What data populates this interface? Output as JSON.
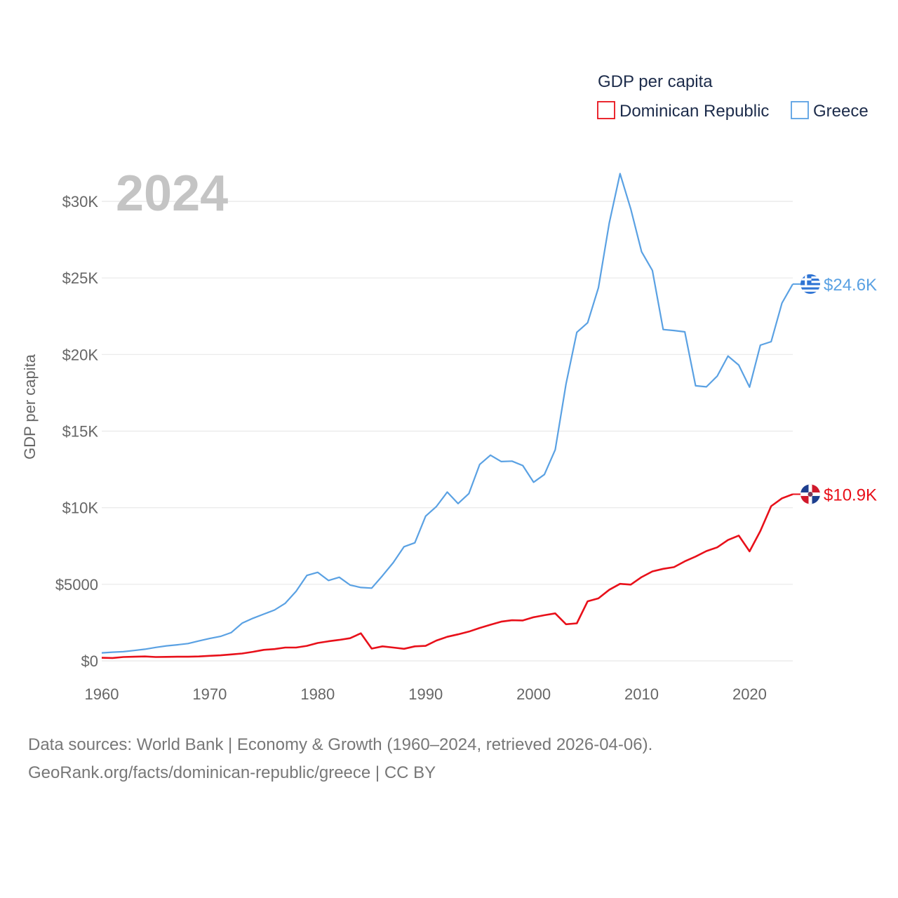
{
  "chart_data": {
    "type": "line",
    "title": "GDP per capita",
    "ylabel": "GDP per capita",
    "xlabel": "",
    "highlight_year": "2024",
    "xlim": [
      1960,
      2024
    ],
    "ylim": [
      0,
      32500
    ],
    "x_ticks": [
      1960,
      1970,
      1980,
      1990,
      2000,
      2010,
      2020
    ],
    "y_ticks": [
      {
        "value": 0,
        "label": "$0"
      },
      {
        "value": 5000,
        "label": "$5000"
      },
      {
        "value": 10000,
        "label": "$10K"
      },
      {
        "value": 15000,
        "label": "$15K"
      },
      {
        "value": 20000,
        "label": "$20K"
      },
      {
        "value": 25000,
        "label": "$25K"
      },
      {
        "value": 30000,
        "label": "$30K"
      }
    ],
    "legend": {
      "title": "GDP per capita",
      "placement": "top-right"
    },
    "x": [
      1960,
      1961,
      1962,
      1963,
      1964,
      1965,
      1966,
      1967,
      1968,
      1969,
      1970,
      1971,
      1972,
      1973,
      1974,
      1975,
      1976,
      1977,
      1978,
      1979,
      1980,
      1981,
      1982,
      1983,
      1984,
      1985,
      1986,
      1987,
      1988,
      1989,
      1990,
      1991,
      1992,
      1993,
      1994,
      1995,
      1996,
      1997,
      1998,
      1999,
      2000,
      2001,
      2002,
      2003,
      2004,
      2005,
      2006,
      2007,
      2008,
      2009,
      2010,
      2011,
      2012,
      2013,
      2014,
      2015,
      2016,
      2017,
      2018,
      2019,
      2020,
      2021,
      2022,
      2023,
      2024
    ],
    "series": [
      {
        "name": "Dominican Republic",
        "color": "#e8101a",
        "end_label": "$10.9K",
        "flag": "dominican-republic",
        "values": [
          200,
          190,
          250,
          270,
          290,
          250,
          260,
          270,
          270,
          290,
          330,
          360,
          420,
          480,
          590,
          720,
          770,
          870,
          870,
          980,
          1170,
          1280,
          1370,
          1480,
          1800,
          800,
          950,
          870,
          790,
          950,
          980,
          1330,
          1570,
          1730,
          1910,
          2150,
          2360,
          2560,
          2650,
          2640,
          2850,
          2980,
          3100,
          2390,
          2450,
          3890,
          4080,
          4640,
          5030,
          4980,
          5470,
          5840,
          6010,
          6120,
          6500,
          6810,
          7170,
          7410,
          7890,
          8180,
          7150,
          8480,
          10100,
          10610,
          10880
        ]
      },
      {
        "name": "Greece",
        "color": "#5aa1e3",
        "end_label": "$24.6K",
        "flag": "greece",
        "values": [
          520,
          570,
          600,
          680,
          760,
          880,
          980,
          1050,
          1130,
          1300,
          1460,
          1600,
          1850,
          2460,
          2780,
          3050,
          3320,
          3760,
          4540,
          5580,
          5780,
          5250,
          5460,
          4950,
          4790,
          4750,
          5560,
          6410,
          7450,
          7710,
          9450,
          10080,
          11020,
          10270,
          10920,
          12820,
          13430,
          13010,
          13040,
          12750,
          11660,
          12170,
          13780,
          18080,
          21450,
          22070,
          24360,
          28580,
          31810,
          29500,
          26710,
          25490,
          21630,
          21570,
          21480,
          17960,
          17890,
          18590,
          19900,
          19310,
          17870,
          20610,
          20840,
          23360,
          24600
        ]
      }
    ]
  },
  "footer": {
    "line1": "Data sources: World Bank | Economy & Growth (1960–2024, retrieved 2026-04-06).",
    "line2": "GeoRank.org/facts/dominican-republic/greece | CC BY"
  }
}
